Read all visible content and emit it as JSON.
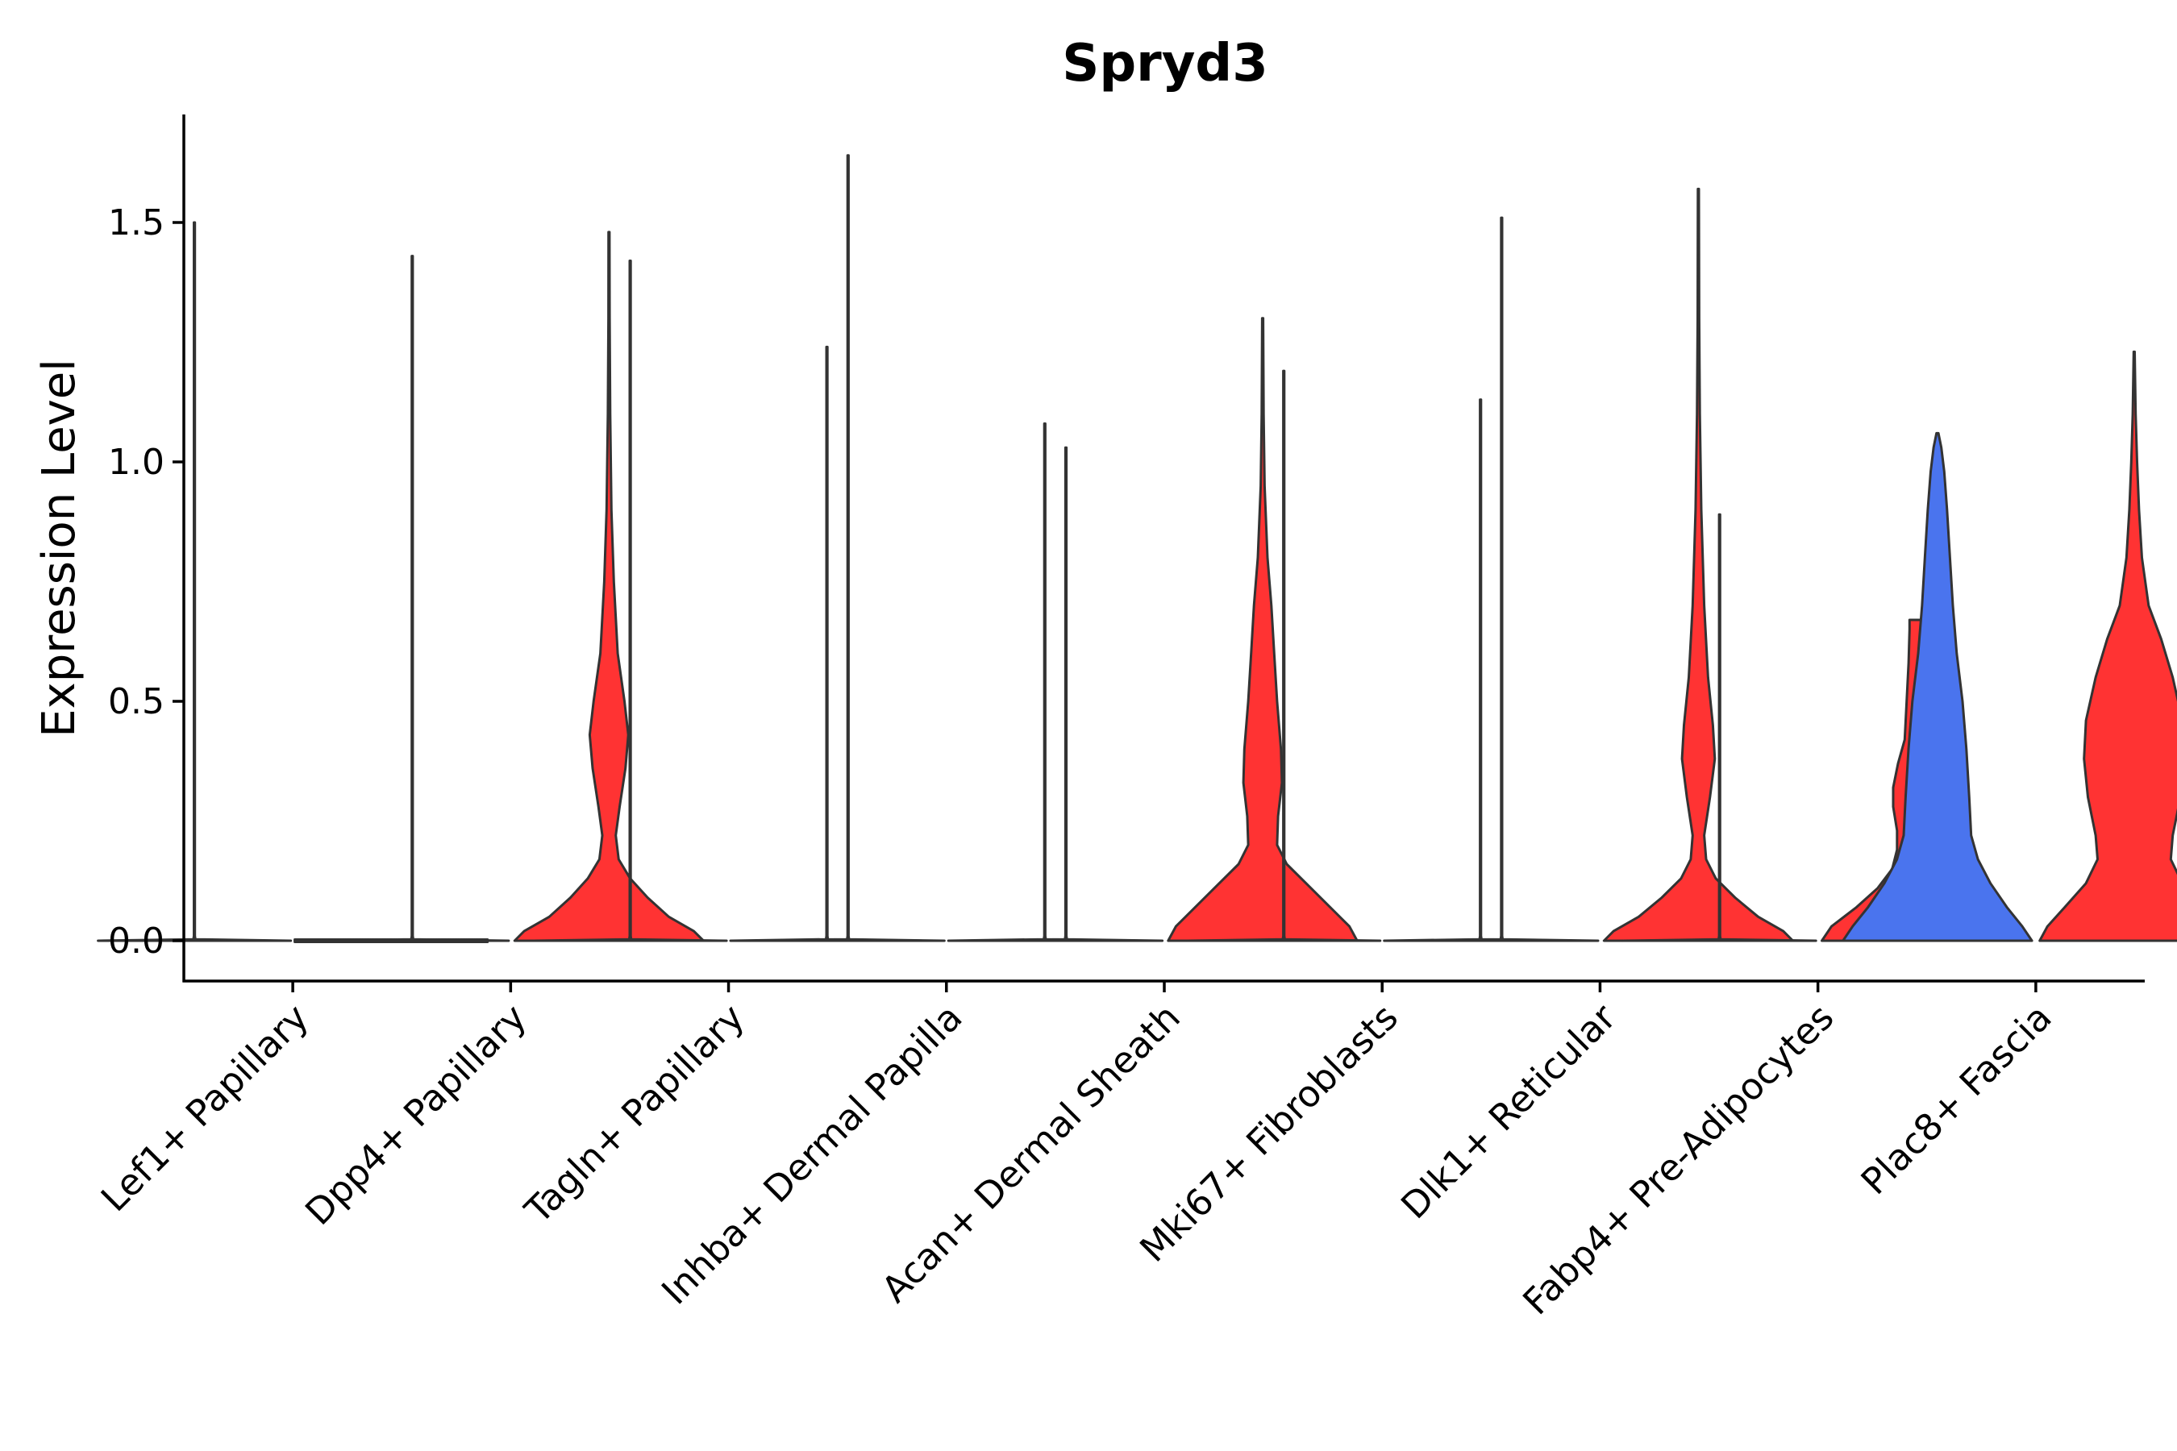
{
  "chart_data": {
    "type": "violin",
    "title": "Spryd3",
    "xlabel": "",
    "ylabel": "Expression Level",
    "ylim": [
      -0.08,
      1.72
    ],
    "yticks": [
      0.0,
      0.5,
      1.0,
      1.5
    ],
    "ytick_labels": [
      "0.0",
      "0.5",
      "1.0",
      "1.5"
    ],
    "grid": false,
    "legend": "none",
    "colors": {
      "expressed": "#ff3333",
      "blue": "#4a74ee",
      "stroke": "#333333"
    },
    "categories": [
      "Lef1+ Papillary",
      "Dpp4+ Papillary",
      "Tagln+ Papillary",
      "Inhba+ Dermal Papilla",
      "Acan+ Dermal Sheath",
      "Mki67+ Fibroblasts",
      "Dlk1+ Reticular",
      "Fabp4+ Pre-Adipocytes",
      "Plac8+ Fascia"
    ],
    "violins": [
      {
        "category": "Lef1+ Papillary",
        "side": "left",
        "color": "#ff3333",
        "max": 1.5,
        "profile": [
          [
            0,
            1
          ],
          [
            0.003,
            0.01
          ],
          [
            0.01,
            0.005
          ],
          [
            1.5,
            0.005
          ]
        ]
      },
      {
        "category": "Lef1+ Papillary",
        "side": "right",
        "color": "#ff3333",
        "max": 0.0,
        "profile": [
          [
            0,
            1
          ]
        ]
      },
      {
        "category": "Dpp4+ Papillary",
        "side": "left",
        "color": "#ff3333",
        "max": 1.43,
        "profile": [
          [
            0,
            1
          ],
          [
            0.003,
            0.01
          ],
          [
            0.01,
            0.005
          ],
          [
            1.43,
            0.005
          ]
        ]
      },
      {
        "category": "Dpp4+ Papillary",
        "side": "right",
        "color": "#ff3333",
        "max": 1.48,
        "profile": [
          [
            0,
            0.98
          ],
          [
            0.02,
            0.88
          ],
          [
            0.05,
            0.62
          ],
          [
            0.09,
            0.4
          ],
          [
            0.13,
            0.22
          ],
          [
            0.17,
            0.1
          ],
          [
            0.22,
            0.07
          ],
          [
            0.28,
            0.11
          ],
          [
            0.36,
            0.17
          ],
          [
            0.43,
            0.2
          ],
          [
            0.5,
            0.16
          ],
          [
            0.6,
            0.09
          ],
          [
            0.75,
            0.05
          ],
          [
            0.9,
            0.025
          ],
          [
            1.1,
            0.012
          ],
          [
            1.3,
            0.006
          ],
          [
            1.48,
            0.005
          ]
        ]
      },
      {
        "category": "Tagln+ Papillary",
        "side": "left",
        "color": "#ff3333",
        "max": 1.42,
        "profile": [
          [
            0,
            1
          ],
          [
            0.003,
            0.01
          ],
          [
            0.01,
            0.005
          ],
          [
            1.42,
            0.005
          ]
        ]
      },
      {
        "category": "Tagln+ Papillary",
        "side": "right",
        "color": "#ff3333",
        "max": 1.24,
        "profile": [
          [
            0,
            1
          ],
          [
            0.003,
            0.01
          ],
          [
            0.01,
            0.005
          ],
          [
            1.24,
            0.005
          ]
        ]
      },
      {
        "category": "Inhba+ Dermal Papilla",
        "side": "left",
        "color": "#ff3333",
        "max": 1.64,
        "profile": [
          [
            0,
            1
          ],
          [
            0.003,
            0.01
          ],
          [
            0.01,
            0.005
          ],
          [
            1.64,
            0.005
          ]
        ]
      },
      {
        "category": "Inhba+ Dermal Papilla",
        "side": "right",
        "color": "#ff3333",
        "max": 1.08,
        "profile": [
          [
            0,
            1
          ],
          [
            0.003,
            0.01
          ],
          [
            0.01,
            0.005
          ],
          [
            1.08,
            0.005
          ]
        ]
      },
      {
        "category": "Acan+ Dermal Sheath",
        "side": "left",
        "color": "#ff3333",
        "max": 1.03,
        "profile": [
          [
            0,
            1
          ],
          [
            0.003,
            0.01
          ],
          [
            0.01,
            0.005
          ],
          [
            1.03,
            0.005
          ]
        ]
      },
      {
        "category": "Acan+ Dermal Sheath",
        "side": "right",
        "color": "#ff3333",
        "max": 1.3,
        "profile": [
          [
            0,
            0.98
          ],
          [
            0.03,
            0.9
          ],
          [
            0.07,
            0.7
          ],
          [
            0.12,
            0.45
          ],
          [
            0.16,
            0.25
          ],
          [
            0.2,
            0.15
          ],
          [
            0.26,
            0.16
          ],
          [
            0.33,
            0.2
          ],
          [
            0.4,
            0.19
          ],
          [
            0.5,
            0.15
          ],
          [
            0.6,
            0.12
          ],
          [
            0.7,
            0.09
          ],
          [
            0.8,
            0.05
          ],
          [
            0.95,
            0.02
          ],
          [
            1.1,
            0.01
          ],
          [
            1.3,
            0.005
          ]
        ]
      },
      {
        "category": "Mki67+ Fibroblasts",
        "side": "left",
        "color": "#ff3333",
        "max": 1.19,
        "profile": [
          [
            0,
            1
          ],
          [
            0.003,
            0.01
          ],
          [
            0.01,
            0.005
          ],
          [
            1.19,
            0.005
          ]
        ]
      },
      {
        "category": "Mki67+ Fibroblasts",
        "side": "right",
        "color": "#ff3333",
        "max": 1.13,
        "profile": [
          [
            0,
            1
          ],
          [
            0.003,
            0.01
          ],
          [
            0.01,
            0.005
          ],
          [
            1.13,
            0.005
          ]
        ]
      },
      {
        "category": "Dlk1+ Reticular",
        "side": "left",
        "color": "#ff3333",
        "max": 1.51,
        "profile": [
          [
            0,
            1
          ],
          [
            0.003,
            0.01
          ],
          [
            0.01,
            0.005
          ],
          [
            1.51,
            0.005
          ]
        ]
      },
      {
        "category": "Dlk1+ Reticular",
        "side": "right",
        "color": "#ff3333",
        "max": 1.57,
        "profile": [
          [
            0,
            0.98
          ],
          [
            0.02,
            0.88
          ],
          [
            0.05,
            0.62
          ],
          [
            0.09,
            0.38
          ],
          [
            0.13,
            0.18
          ],
          [
            0.17,
            0.08
          ],
          [
            0.22,
            0.06
          ],
          [
            0.3,
            0.12
          ],
          [
            0.38,
            0.17
          ],
          [
            0.45,
            0.15
          ],
          [
            0.55,
            0.1
          ],
          [
            0.7,
            0.06
          ],
          [
            0.9,
            0.03
          ],
          [
            1.1,
            0.015
          ],
          [
            1.3,
            0.008
          ],
          [
            1.57,
            0.005
          ]
        ]
      },
      {
        "category": "Fabp4+ Pre-Adipocytes",
        "side": "left",
        "color": "#ff3333",
        "max": 0.89,
        "profile": [
          [
            0,
            1
          ],
          [
            0.003,
            0.01
          ],
          [
            0.01,
            0.005
          ],
          [
            0.89,
            0.005
          ]
        ]
      },
      {
        "category": "Fabp4+ Pre-Adipocytes",
        "side": "right",
        "color": "#ff3333",
        "max": 0.67,
        "profile": [
          [
            0,
            0.98
          ],
          [
            0.03,
            0.88
          ],
          [
            0.07,
            0.62
          ],
          [
            0.11,
            0.4
          ],
          [
            0.15,
            0.25
          ],
          [
            0.19,
            0.2
          ],
          [
            0.23,
            0.2
          ],
          [
            0.28,
            0.24
          ],
          [
            0.32,
            0.24
          ],
          [
            0.37,
            0.19
          ],
          [
            0.42,
            0.12
          ],
          [
            0.5,
            0.1
          ],
          [
            0.58,
            0.08
          ],
          [
            0.65,
            0.07
          ],
          [
            0.67,
            0.07
          ]
        ]
      },
      {
        "category": "Plac8+ Fascia",
        "side": "left",
        "color": "#4a74ee",
        "max": 1.06,
        "profile": [
          [
            0,
            0.98
          ],
          [
            0.03,
            0.88
          ],
          [
            0.07,
            0.72
          ],
          [
            0.12,
            0.55
          ],
          [
            0.17,
            0.42
          ],
          [
            0.22,
            0.35
          ],
          [
            0.3,
            0.33
          ],
          [
            0.4,
            0.3
          ],
          [
            0.5,
            0.26
          ],
          [
            0.6,
            0.2
          ],
          [
            0.7,
            0.16
          ],
          [
            0.8,
            0.13
          ],
          [
            0.9,
            0.1
          ],
          [
            0.98,
            0.07
          ],
          [
            1.03,
            0.04
          ],
          [
            1.06,
            0.01
          ]
        ]
      },
      {
        "category": "Plac8+ Fascia",
        "side": "right",
        "color": "#ff3333",
        "max": 1.23,
        "profile": [
          [
            0,
            0.98
          ],
          [
            0.03,
            0.9
          ],
          [
            0.07,
            0.72
          ],
          [
            0.12,
            0.5
          ],
          [
            0.17,
            0.38
          ],
          [
            0.22,
            0.4
          ],
          [
            0.3,
            0.48
          ],
          [
            0.38,
            0.52
          ],
          [
            0.46,
            0.5
          ],
          [
            0.55,
            0.4
          ],
          [
            0.63,
            0.28
          ],
          [
            0.7,
            0.15
          ],
          [
            0.8,
            0.08
          ],
          [
            0.9,
            0.05
          ],
          [
            1.0,
            0.03
          ],
          [
            1.1,
            0.015
          ],
          [
            1.23,
            0.005
          ]
        ]
      }
    ]
  }
}
